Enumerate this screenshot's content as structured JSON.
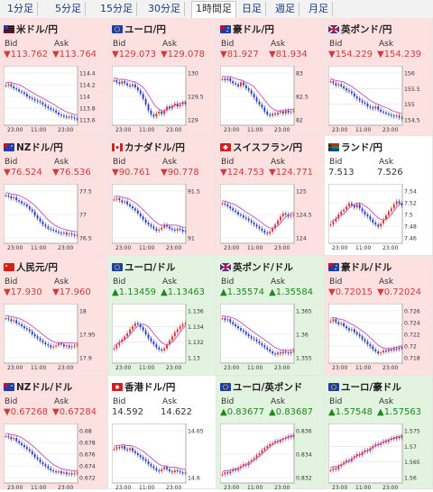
{
  "tabs": [
    "1分足",
    "5分足",
    "15分足",
    "30分足",
    "1時間足",
    "日足",
    "週足",
    "月足"
  ],
  "active_tab": 4,
  "labels": {
    "bid": "Bid",
    "ask": "Ask"
  },
  "colors": {
    "down_bg": "#fde0e0",
    "up_bg": "#e2f4df",
    "down_text": "#d23a3a",
    "up_text": "#1c8a1c",
    "ma": "#c24fc2",
    "candle_up": "#d23a3a",
    "candle_down": "#2a3fc4"
  },
  "pairs": [
    {
      "name": "米ドル/円",
      "flag": "us-flag-icon",
      "dir": "down",
      "bid": "▼113.762",
      "ask": "▼113.764",
      "yticks": [
        "114.4",
        "114.2",
        "114",
        "113.8",
        "113.6"
      ],
      "xticks": [
        "23:00",
        "11:00",
        "23:00"
      ],
      "trend": [
        0.72,
        0.74,
        0.7,
        0.66,
        0.64,
        0.6,
        0.58,
        0.55,
        0.5,
        0.47,
        0.45,
        0.42,
        0.4,
        0.38,
        0.34,
        0.3,
        0.27,
        0.24,
        0.22,
        0.18,
        0.14,
        0.12,
        0.1,
        0.09,
        0.1,
        0.08,
        0.06,
        0.05
      ]
    },
    {
      "name": "ユーロ/円",
      "flag": "eu-flag-icon",
      "dir": "down",
      "bid": "▼129.073",
      "ask": "▼129.078",
      "yticks": [
        "130",
        "129.5",
        "129"
      ],
      "xticks": [
        "23:00",
        "11:00",
        "23:00"
      ],
      "trend": [
        0.82,
        0.78,
        0.75,
        0.8,
        0.76,
        0.72,
        0.7,
        0.74,
        0.68,
        0.62,
        0.55,
        0.45,
        0.34,
        0.22,
        0.14,
        0.1,
        0.16,
        0.2,
        0.15,
        0.22,
        0.3,
        0.26,
        0.32,
        0.36,
        0.3,
        0.34,
        0.38,
        0.35
      ]
    },
    {
      "name": "豪ドル/円",
      "flag": "au-flag-icon",
      "dir": "down",
      "bid": "▼81.927",
      "ask": "▼81.934",
      "yticks": [
        "83",
        "82.5",
        "82"
      ],
      "xticks": [
        "23:00",
        "11:00",
        "23:00"
      ],
      "trend": [
        0.85,
        0.82,
        0.86,
        0.8,
        0.76,
        0.74,
        0.7,
        0.78,
        0.72,
        0.66,
        0.62,
        0.55,
        0.48,
        0.4,
        0.34,
        0.28,
        0.2,
        0.14,
        0.12,
        0.16,
        0.14,
        0.18,
        0.2,
        0.16,
        0.22,
        0.18,
        0.2,
        0.22
      ]
    },
    {
      "name": "英ポンド/円",
      "flag": "gb-flag-icon",
      "dir": "down",
      "bid": "▼154.229",
      "ask": "▼154.239",
      "yticks": [
        "156",
        "155.5",
        "155",
        "154.5"
      ],
      "xticks": [
        "23:00",
        "11:00",
        "23:00"
      ],
      "trend": [
        0.8,
        0.76,
        0.72,
        0.74,
        0.7,
        0.66,
        0.62,
        0.6,
        0.56,
        0.5,
        0.46,
        0.42,
        0.38,
        0.36,
        0.3,
        0.28,
        0.26,
        0.3,
        0.24,
        0.2,
        0.18,
        0.16,
        0.14,
        0.12,
        0.1,
        0.12,
        0.08,
        0.06
      ]
    },
    {
      "name": "NZドル/円",
      "flag": "nz-flag-icon",
      "dir": "down",
      "bid": "▼76.524",
      "ask": "▼76.536",
      "yticks": [
        "77.5",
        "77",
        "76.5"
      ],
      "xticks": [
        "23:00",
        "11:00",
        "23:00"
      ],
      "trend": [
        0.88,
        0.86,
        0.82,
        0.84,
        0.78,
        0.76,
        0.72,
        0.7,
        0.66,
        0.6,
        0.56,
        0.48,
        0.42,
        0.36,
        0.3,
        0.26,
        0.22,
        0.2,
        0.18,
        0.16,
        0.14,
        0.12,
        0.14,
        0.1,
        0.12,
        0.1,
        0.08,
        0.1
      ]
    },
    {
      "name": "カナダドル/円",
      "flag": "ca-flag-icon",
      "dir": "down",
      "bid": "▼90.761",
      "ask": "▼90.778",
      "yticks": [
        "91.5",
        "91"
      ],
      "xticks": [
        "23:00",
        "11:00",
        "23:00"
      ],
      "trend": [
        0.8,
        0.82,
        0.78,
        0.74,
        0.76,
        0.7,
        0.66,
        0.62,
        0.58,
        0.52,
        0.46,
        0.4,
        0.34,
        0.3,
        0.26,
        0.22,
        0.18,
        0.2,
        0.24,
        0.3,
        0.26,
        0.22,
        0.2,
        0.18,
        0.22,
        0.2,
        0.16,
        0.18
      ]
    },
    {
      "name": "スイスフラン/円",
      "flag": "ch-flag-icon",
      "dir": "down",
      "bid": "▼124.753",
      "ask": "▼124.771",
      "yticks": [
        "125",
        "124.5",
        "124"
      ],
      "xticks": [
        "23:00",
        "11:00",
        "23:00"
      ],
      "trend": [
        0.72,
        0.7,
        0.66,
        0.62,
        0.58,
        0.55,
        0.5,
        0.48,
        0.44,
        0.42,
        0.38,
        0.34,
        0.3,
        0.26,
        0.22,
        0.18,
        0.14,
        0.12,
        0.16,
        0.22,
        0.3,
        0.38,
        0.46,
        0.52,
        0.5,
        0.46,
        0.48,
        0.5
      ]
    },
    {
      "name": "ランド/円",
      "flag": "za-flag-icon",
      "dir": "flat",
      "bid": "7.513",
      "ask": "7.526",
      "yticks": [
        "7.54",
        "7.52",
        "7.5",
        "7.48",
        "7.46"
      ],
      "xticks": [
        "23:00",
        "11:00",
        "23:00"
      ],
      "trend": [
        0.3,
        0.36,
        0.42,
        0.5,
        0.56,
        0.6,
        0.66,
        0.72,
        0.68,
        0.64,
        0.7,
        0.62,
        0.56,
        0.5,
        0.46,
        0.4,
        0.34,
        0.3,
        0.26,
        0.32,
        0.4,
        0.48,
        0.56,
        0.62,
        0.7,
        0.76,
        0.72,
        0.68
      ]
    },
    {
      "name": "人民元/円",
      "flag": "cn-flag-icon",
      "dir": "down",
      "bid": "▼17.930",
      "ask": "▼17.960",
      "yticks": [
        "18",
        "17.95",
        "17.9"
      ],
      "xticks": [
        "23:00",
        "11:00",
        "23:00"
      ],
      "trend": [
        0.82,
        0.8,
        0.76,
        0.78,
        0.72,
        0.7,
        0.66,
        0.62,
        0.6,
        0.56,
        0.5,
        0.46,
        0.42,
        0.38,
        0.34,
        0.3,
        0.28,
        0.24,
        0.26,
        0.28,
        0.32,
        0.3,
        0.26,
        0.28,
        0.24,
        0.26,
        0.28,
        0.3
      ]
    },
    {
      "name": "ユーロ/ドル",
      "flag": "eu-flag-icon",
      "dir": "up",
      "bid": "▲1.13459",
      "ask": "▲1.13463",
      "yticks": [
        "1.136",
        "1.134",
        "1.132",
        "1.13"
      ],
      "xticks": [
        "23:00",
        "11:00",
        "23:00"
      ],
      "trend": [
        0.22,
        0.28,
        0.35,
        0.4,
        0.46,
        0.52,
        0.6,
        0.66,
        0.72,
        0.7,
        0.64,
        0.58,
        0.5,
        0.42,
        0.36,
        0.3,
        0.24,
        0.2,
        0.18,
        0.22,
        0.3,
        0.38,
        0.46,
        0.54,
        0.6,
        0.66,
        0.7,
        0.72
      ]
    },
    {
      "name": "英ポンド/ドル",
      "flag": "gb-flag-icon",
      "dir": "up",
      "bid": "▲1.35574",
      "ask": "▲1.35584",
      "yticks": [
        "1.365",
        "1.36",
        "1.355"
      ],
      "xticks": [
        "23:00",
        "11:00",
        "23:00"
      ],
      "trend": [
        0.82,
        0.78,
        0.8,
        0.74,
        0.7,
        0.66,
        0.62,
        0.58,
        0.55,
        0.5,
        0.46,
        0.42,
        0.4,
        0.36,
        0.32,
        0.28,
        0.24,
        0.2,
        0.16,
        0.12,
        0.1,
        0.14,
        0.12,
        0.16,
        0.14,
        0.12,
        0.16,
        0.18
      ]
    },
    {
      "name": "豪ドル/ドル",
      "flag": "au-flag-icon",
      "dir": "down",
      "bid": "▼0.72015",
      "ask": "▼0.72024",
      "yticks": [
        "0.726",
        "0.724",
        "0.722",
        "0.72",
        "0.718"
      ],
      "xticks": [
        "23:00",
        "11:00",
        "23:00"
      ],
      "trend": [
        0.76,
        0.8,
        0.74,
        0.7,
        0.72,
        0.66,
        0.62,
        0.58,
        0.6,
        0.54,
        0.5,
        0.46,
        0.4,
        0.36,
        0.3,
        0.26,
        0.2,
        0.16,
        0.12,
        0.14,
        0.18,
        0.16,
        0.2,
        0.18,
        0.22,
        0.2,
        0.24,
        0.22
      ]
    },
    {
      "name": "NZドル/ドル",
      "flag": "nz-flag-icon",
      "dir": "down",
      "bid": "▼0.67268",
      "ask": "▼0.67284",
      "yticks": [
        "0.68",
        "0.678",
        "0.676",
        "0.674",
        "0.672"
      ],
      "xticks": [
        "23:00",
        "11:00",
        "23:00"
      ],
      "trend": [
        0.86,
        0.84,
        0.8,
        0.82,
        0.76,
        0.72,
        0.68,
        0.64,
        0.6,
        0.56,
        0.5,
        0.44,
        0.4,
        0.34,
        0.3,
        0.26,
        0.22,
        0.18,
        0.16,
        0.14,
        0.16,
        0.12,
        0.14,
        0.1,
        0.12,
        0.1,
        0.12,
        0.14
      ]
    },
    {
      "name": "香港ドル/円",
      "flag": "hk-flag-icon",
      "dir": "flat",
      "bid": "14.592",
      "ask": "14.622",
      "yticks": [
        "14.65",
        "14.6"
      ],
      "xticks": [
        "23:00",
        "11:00",
        "23:00"
      ],
      "trend": [
        0.6,
        0.64,
        0.62,
        0.66,
        0.6,
        0.58,
        0.62,
        0.56,
        0.52,
        0.48,
        0.44,
        0.4,
        0.36,
        0.3,
        0.26,
        0.22,
        0.18,
        0.16,
        0.2,
        0.24,
        0.2,
        0.16,
        0.14,
        0.18,
        0.16,
        0.14,
        0.12,
        0.14
      ]
    },
    {
      "name": "ユーロ/英ポンド",
      "flag": "eu-flag-icon",
      "dir": "up",
      "bid": "▲0.83677",
      "ask": "▲0.83687",
      "yticks": [
        "0.836",
        "0.834",
        "0.832"
      ],
      "xticks": [
        "23:00",
        "11:00",
        "23:00"
      ],
      "trend": [
        0.1,
        0.14,
        0.12,
        0.16,
        0.2,
        0.18,
        0.22,
        0.26,
        0.3,
        0.28,
        0.34,
        0.38,
        0.42,
        0.48,
        0.52,
        0.58,
        0.62,
        0.66,
        0.7,
        0.72,
        0.76,
        0.74,
        0.78,
        0.8,
        0.82,
        0.86,
        0.84,
        0.88
      ]
    },
    {
      "name": "ユーロ/豪ドル",
      "flag": "eu-flag-icon",
      "dir": "up",
      "bid": "▲1.57548",
      "ask": "▲1.57563",
      "yticks": [
        "1.575",
        "1.57",
        "1.565",
        "1.56"
      ],
      "xticks": [
        "23:00",
        "11:00",
        "23:00"
      ],
      "trend": [
        0.18,
        0.22,
        0.2,
        0.26,
        0.3,
        0.34,
        0.38,
        0.36,
        0.42,
        0.46,
        0.5,
        0.48,
        0.54,
        0.58,
        0.56,
        0.62,
        0.66,
        0.7,
        0.68,
        0.72,
        0.76,
        0.74,
        0.78,
        0.82,
        0.8,
        0.84,
        0.82,
        0.86
      ]
    }
  ]
}
